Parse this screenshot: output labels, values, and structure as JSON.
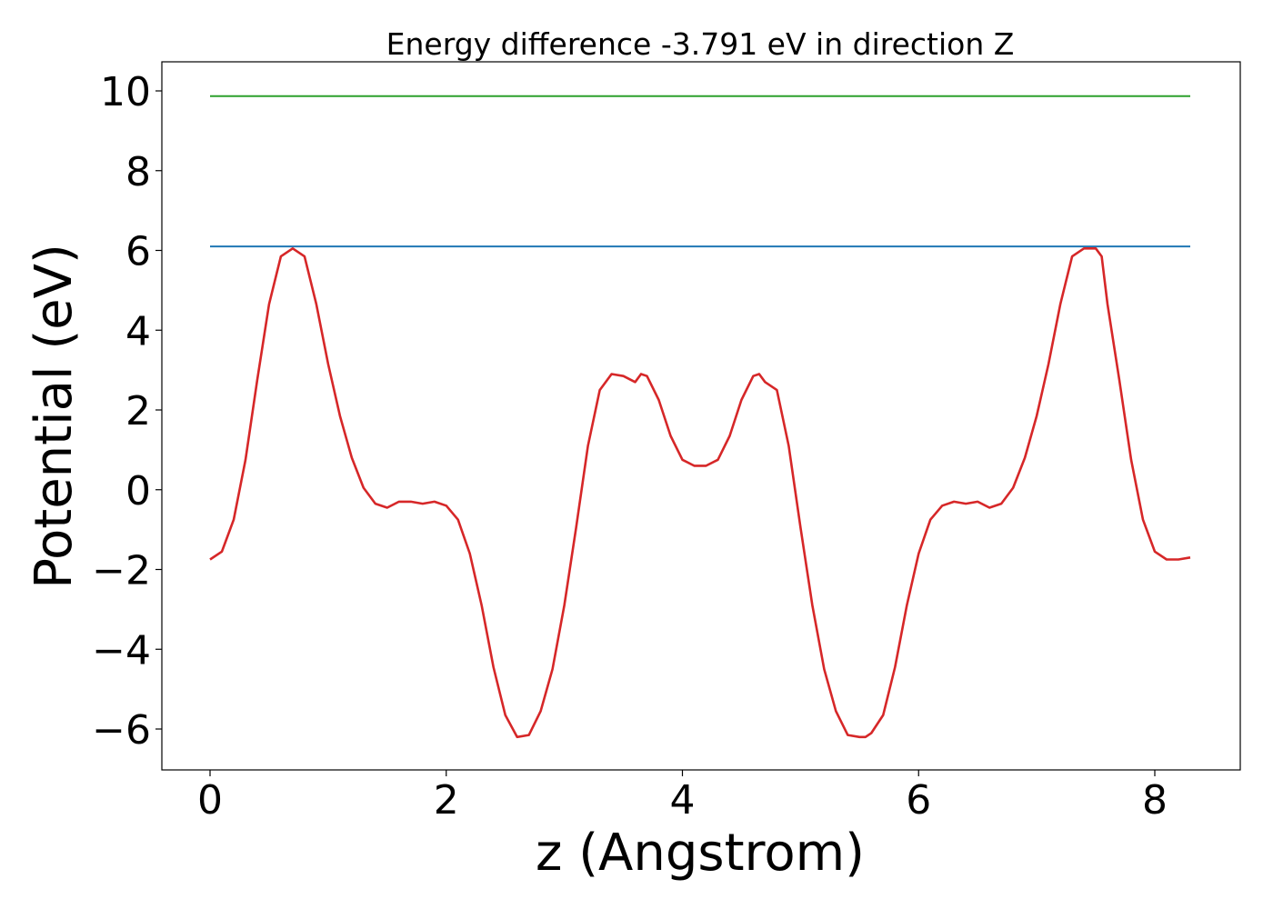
{
  "chart_data": {
    "type": "line",
    "title": "Energy difference -3.791 eV in direction Z",
    "xlabel": "z (Angstrom)",
    "ylabel": "Potential (eV)",
    "xlim": [
      -0.4,
      8.75
    ],
    "ylim": [
      -7.0,
      10.7
    ],
    "xticks": [
      0,
      2,
      4,
      6,
      8
    ],
    "yticks": [
      10,
      8,
      6,
      4,
      2,
      0,
      -2,
      -4,
      -6
    ],
    "xtick_labels": [
      "0",
      "2",
      "4",
      "6",
      "8"
    ],
    "ytick_labels": [
      "10",
      "8",
      "6",
      "4",
      "2",
      "0",
      "−2",
      "−4",
      "−6"
    ],
    "grid": false,
    "legend": "none",
    "series": [
      {
        "color": "#2ca02c",
        "x": [
          0.0,
          8.3
        ],
        "y": [
          9.87,
          9.87
        ]
      },
      {
        "color": "#1f77b4",
        "x": [
          0.0,
          8.3
        ],
        "y": [
          6.1,
          6.1
        ]
      },
      {
        "color": "#d62728",
        "x": [
          0.0,
          0.1,
          0.2,
          0.3,
          0.4,
          0.5,
          0.6,
          0.7,
          0.8,
          0.9,
          1.0,
          1.1,
          1.2,
          1.3,
          1.4,
          1.5,
          1.6,
          1.7,
          1.8,
          1.9,
          2.0,
          2.1,
          2.2,
          2.3,
          2.4,
          2.5,
          2.6,
          2.7,
          2.8,
          2.9,
          3.0,
          3.1,
          3.2,
          3.3,
          3.4,
          3.5,
          3.6,
          3.65,
          3.7,
          3.8,
          3.9,
          4.0,
          4.1,
          4.15,
          4.2,
          4.3,
          4.4,
          4.5,
          4.6,
          4.65,
          4.7,
          4.8,
          4.9,
          5.0,
          5.1,
          5.2,
          5.3,
          5.4,
          5.5,
          5.55,
          5.6,
          5.7,
          5.8,
          5.9,
          6.0,
          6.1,
          6.2,
          6.3,
          6.4,
          6.5,
          6.6,
          6.7,
          6.8,
          6.9,
          7.0,
          7.1,
          7.2,
          7.3,
          7.4,
          7.5,
          7.55,
          7.6,
          7.7,
          7.8,
          7.9,
          8.0,
          8.1,
          8.2,
          8.3
        ],
        "y": [
          -1.75,
          -1.55,
          -0.75,
          0.75,
          2.75,
          4.65,
          5.85,
          6.05,
          5.85,
          4.65,
          3.15,
          1.85,
          0.8,
          0.05,
          -0.35,
          -0.45,
          -0.3,
          -0.3,
          -0.35,
          -0.3,
          -0.4,
          -0.75,
          -1.6,
          -2.9,
          -4.45,
          -5.65,
          -6.2,
          -6.15,
          -5.55,
          -4.5,
          -2.9,
          -0.95,
          1.1,
          2.5,
          2.9,
          2.85,
          2.7,
          2.9,
          2.85,
          2.25,
          1.35,
          0.75,
          0.6,
          0.6,
          0.6,
          0.75,
          1.35,
          2.25,
          2.85,
          2.9,
          2.7,
          2.5,
          1.1,
          -0.95,
          -2.9,
          -4.5,
          -5.55,
          -6.15,
          -6.2,
          -6.2,
          -6.1,
          -5.65,
          -4.45,
          -2.9,
          -1.6,
          -0.75,
          -0.4,
          -0.3,
          -0.35,
          -0.3,
          -0.45,
          -0.35,
          0.05,
          0.8,
          1.85,
          3.15,
          4.65,
          5.85,
          6.05,
          6.05,
          5.85,
          4.65,
          2.75,
          0.75,
          -0.75,
          -1.55,
          -1.75,
          -1.75,
          -1.7
        ]
      }
    ]
  }
}
